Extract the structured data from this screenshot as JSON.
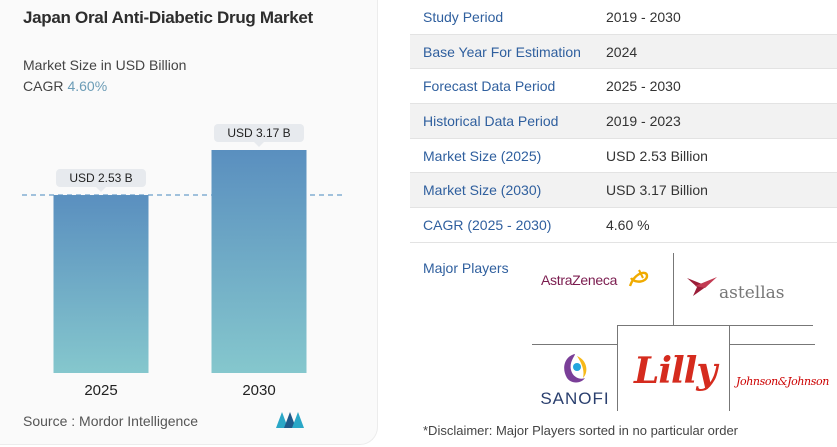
{
  "chart": {
    "title": "Japan Oral Anti-Diabetic Drug Market",
    "subtitle": "Market Size in USD Billion",
    "cagr_label": "CAGR",
    "cagr_value": "4.60%",
    "source": "Source :  Mordor Intelligence"
  },
  "chart_data": {
    "type": "bar",
    "categories": [
      "2025",
      "2030"
    ],
    "values": [
      2.53,
      3.17
    ],
    "data_labels": [
      "USD 2.53 B",
      "USD 3.17 B"
    ],
    "title": "Japan Oral Anti-Diabetic Drug Market",
    "subtitle": "Market Size in USD Billion",
    "ylabel": "",
    "xlabel": "",
    "ylim": [
      0,
      3.17
    ],
    "grid": false,
    "reference_line": 2.53,
    "bar_colors": [
      "#5a8fbf",
      "#85c7cd"
    ]
  },
  "table": {
    "rows": [
      {
        "key": "Study Period",
        "value": "2019 - 2030"
      },
      {
        "key": "Base Year For Estimation",
        "value": "2024"
      },
      {
        "key": "Forecast Data Period",
        "value": "2025 - 2030"
      },
      {
        "key": "Historical Data Period",
        "value": "2019 - 2023"
      },
      {
        "key": "Market Size (2025)",
        "value": "USD 2.53 Billion"
      },
      {
        "key": "Market Size (2030)",
        "value": "USD 3.17 Billion"
      },
      {
        "key": "CAGR (2025 - 2030)",
        "value": "4.60 %"
      }
    ]
  },
  "players": {
    "label": "Major Players",
    "names": [
      "AstraZeneca",
      "astellas",
      "SANOFI",
      "Lilly",
      "Johnson&Johnson"
    ]
  },
  "disclaimer": "*Disclaimer: Major Players sorted in no particular order",
  "colors": {
    "accent_blue": "#2f5f9e",
    "cagr_teal": "#6b9cb6",
    "astrazeneca": "#7b1c4f",
    "astellas": "#9b1d38",
    "lilly": "#d52b1e",
    "jnj": "#cc0000"
  }
}
